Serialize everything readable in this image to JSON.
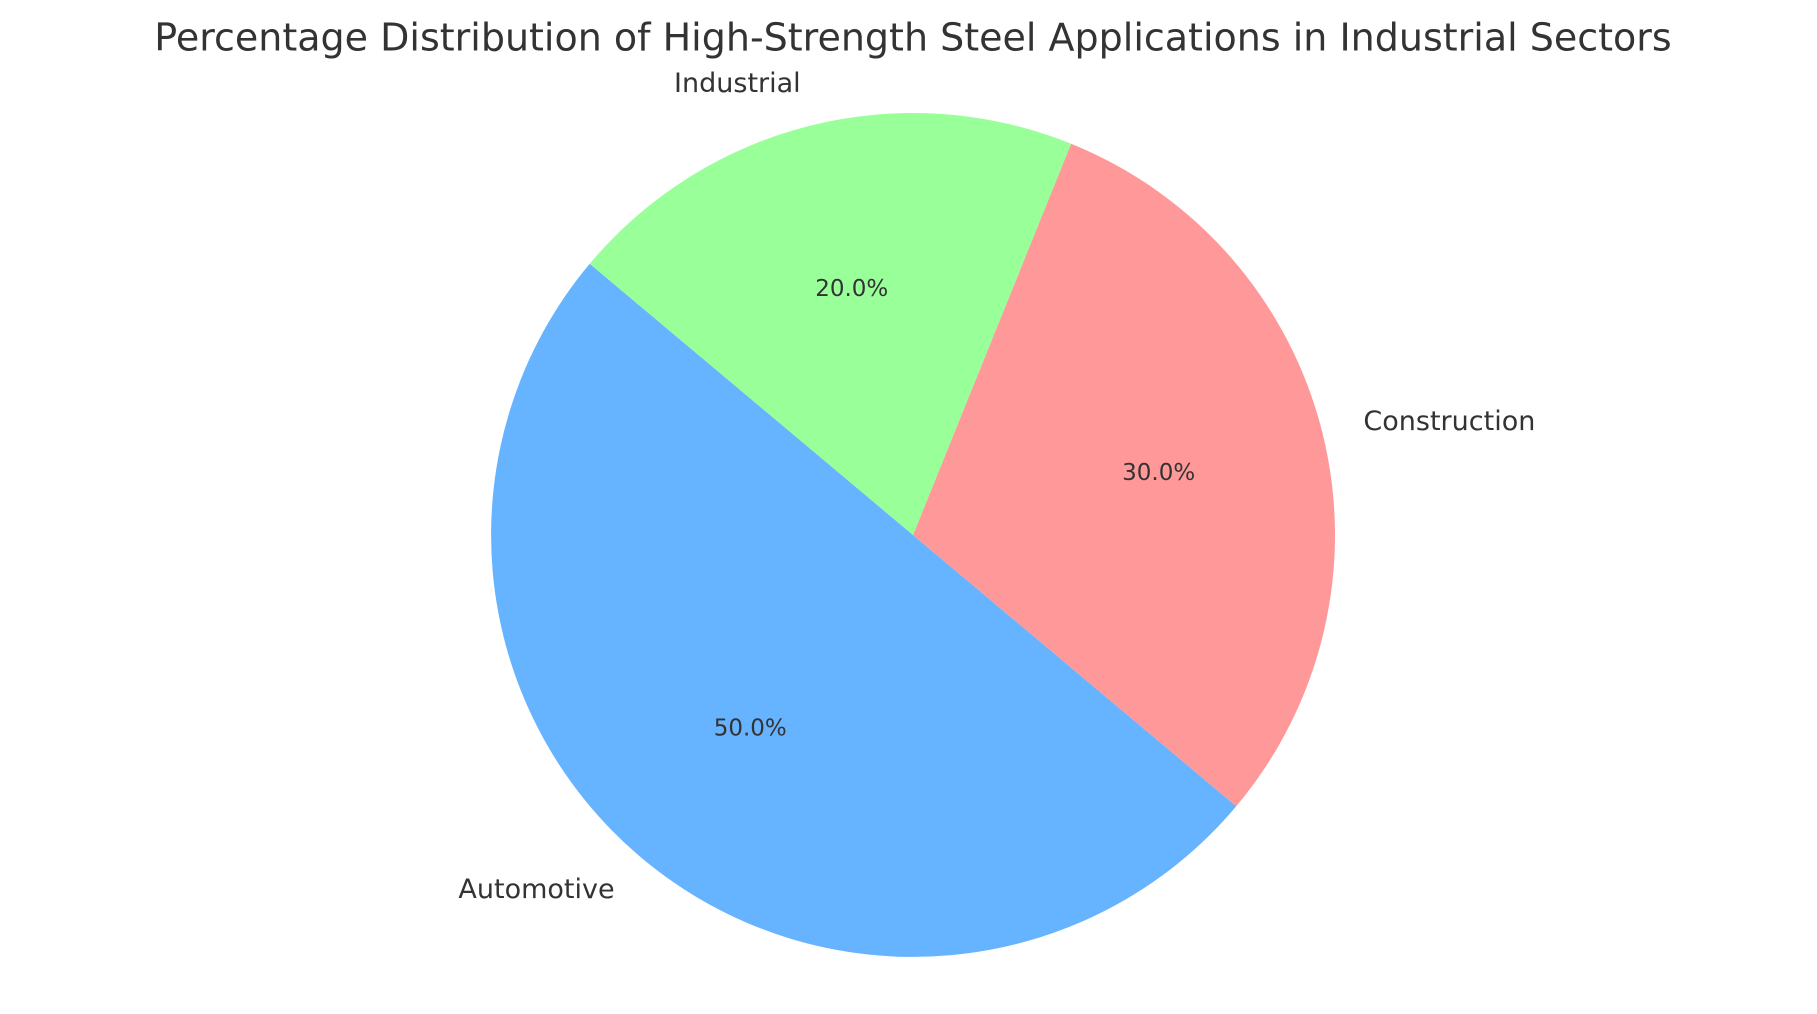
{
  "chart_data": {
    "type": "pie",
    "title": "Percentage Distribution of High-Strength Steel Applications in Industrial Sectors",
    "categories": [
      "Automotive",
      "Construction",
      "Industrial"
    ],
    "values": [
      50,
      30,
      20
    ],
    "value_labels": [
      "50.0%",
      "30.0%",
      "20.0%"
    ],
    "colors": [
      "#66b3ff",
      "#ff9999",
      "#99ff99"
    ]
  }
}
